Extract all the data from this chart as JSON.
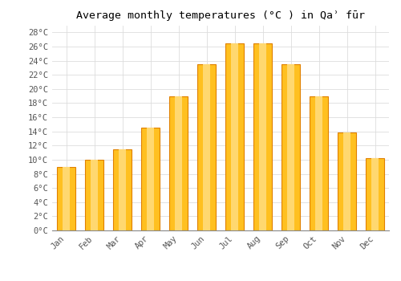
{
  "title": "Average monthly temperatures (°C ) in Qaʾ fūr",
  "months": [
    "Jan",
    "Feb",
    "Mar",
    "Apr",
    "May",
    "Jun",
    "Jul",
    "Aug",
    "Sep",
    "Oct",
    "Nov",
    "Dec"
  ],
  "temperatures": [
    9,
    10,
    11.5,
    14.5,
    19,
    23.5,
    26.5,
    26.5,
    23.5,
    19,
    13.8,
    10.2
  ],
  "bar_color_main": "#FFC020",
  "bar_color_edge": "#E08000",
  "bar_color_light": "#FFD870",
  "background_color": "#FFFFFF",
  "grid_color": "#DDDDDD",
  "ylim": [
    0,
    29
  ],
  "yticks": [
    0,
    2,
    4,
    6,
    8,
    10,
    12,
    14,
    16,
    18,
    20,
    22,
    24,
    26,
    28
  ],
  "title_fontsize": 9.5,
  "tick_fontsize": 7.5,
  "font_family": "monospace"
}
